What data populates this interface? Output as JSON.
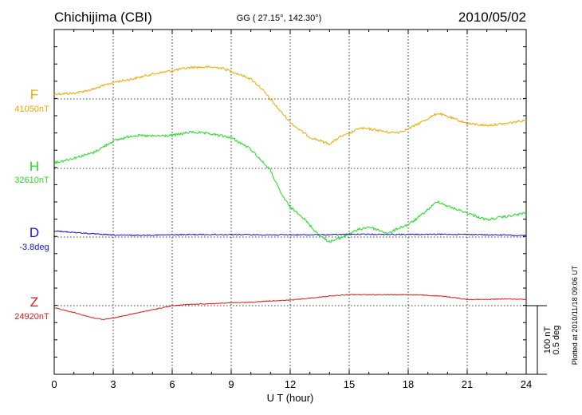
{
  "chart_data": {
    "type": "line",
    "station": "Chichijima (CBI)",
    "coordinates": "GG ( 27.15°, 142.30°)",
    "date": "2010/05/02",
    "xlabel": "U T (hour)",
    "xlim": [
      0,
      24
    ],
    "xticks": [
      "0",
      "3",
      "6",
      "9",
      "12",
      "15",
      "18",
      "21",
      "24"
    ],
    "grid": true,
    "scale_bar": {
      "nt_label": "100 nT",
      "deg_label": "0.5 deg"
    },
    "plotted_note": "Plotted at 2010/11/18 09:06 UT",
    "colors": {
      "F": "#f0a800",
      "H": "#1ee01e",
      "D": "#1515c8",
      "Z": "#e01818"
    },
    "series": [
      {
        "name": "F",
        "baseline_label": "41050nT",
        "baseline": 41050,
        "x": [
          0,
          1,
          2,
          3,
          4,
          5,
          6,
          7,
          8,
          8.5,
          9,
          10,
          10.5,
          11,
          11.5,
          12,
          12.5,
          13,
          14,
          14.5,
          15,
          15.5,
          16,
          16.5,
          17,
          17.5,
          18,
          19,
          19.5,
          20,
          21,
          22,
          23,
          24
        ],
        "values": [
          41048,
          41049,
          41055,
          41065,
          41070,
          41077,
          41082,
          41087,
          41087,
          41086,
          41081,
          41070,
          41057,
          41040,
          41023,
          41007,
          40995,
          40985,
          40975,
          40985,
          40990,
          40998,
          40997,
          40995,
          40992,
          40992,
          40997,
          41012,
          41020,
          41015,
          41005,
          41002,
          41005,
          41010
        ]
      },
      {
        "name": "H",
        "baseline_label": "32610nT",
        "baseline": 32610,
        "x": [
          0,
          1,
          2,
          3,
          4,
          5,
          6,
          7,
          8,
          9,
          10,
          11,
          11.5,
          12,
          12.5,
          13,
          13.5,
          14,
          14.5,
          15,
          15.5,
          16,
          16.5,
          17,
          17.5,
          18,
          18.5,
          19,
          19.5,
          20,
          21,
          22,
          23,
          24
        ],
        "values": [
          32618,
          32625,
          32633,
          32650,
          32658,
          32657,
          32658,
          32663,
          32660,
          32655,
          32638,
          32607,
          32575,
          32553,
          32543,
          32527,
          32512,
          32503,
          32508,
          32515,
          32521,
          32525,
          32520,
          32515,
          32523,
          32528,
          32538,
          32550,
          32562,
          32555,
          32545,
          32535,
          32540,
          32545
        ]
      },
      {
        "name": "D",
        "baseline_label": "-3.8deg",
        "baseline": -3.8,
        "x": [
          0,
          1,
          2,
          3,
          4,
          5,
          6,
          7,
          8,
          9,
          10,
          11,
          12,
          13,
          14,
          15,
          16,
          17,
          18,
          19,
          20,
          21,
          22,
          23,
          23.5,
          24
        ],
        "values": [
          -3.756,
          -3.766,
          -3.777,
          -3.786,
          -3.787,
          -3.786,
          -3.784,
          -3.782,
          -3.782,
          -3.782,
          -3.783,
          -3.784,
          -3.784,
          -3.784,
          -3.783,
          -3.781,
          -3.78,
          -3.781,
          -3.781,
          -3.781,
          -3.78,
          -3.781,
          -3.784,
          -3.785,
          -3.79,
          -3.789
        ]
      },
      {
        "name": "Z",
        "baseline_label": "24920nT",
        "baseline": 24920,
        "x": [
          0,
          1,
          2,
          2.5,
          3,
          4,
          5,
          6,
          7,
          8,
          9,
          10,
          11,
          12,
          13,
          14,
          15,
          16,
          17,
          18,
          19,
          20,
          21,
          22,
          23,
          24
        ],
        "values": [
          24917,
          24910,
          24902,
          24900,
          24902,
          24908,
          24914,
          24920,
          24922,
          24923,
          24924,
          24925,
          24927,
          24928,
          24931,
          24934,
          24936,
          24936,
          24936,
          24936,
          24935,
          24933,
          24929,
          24929,
          24930,
          24929
        ]
      }
    ]
  }
}
